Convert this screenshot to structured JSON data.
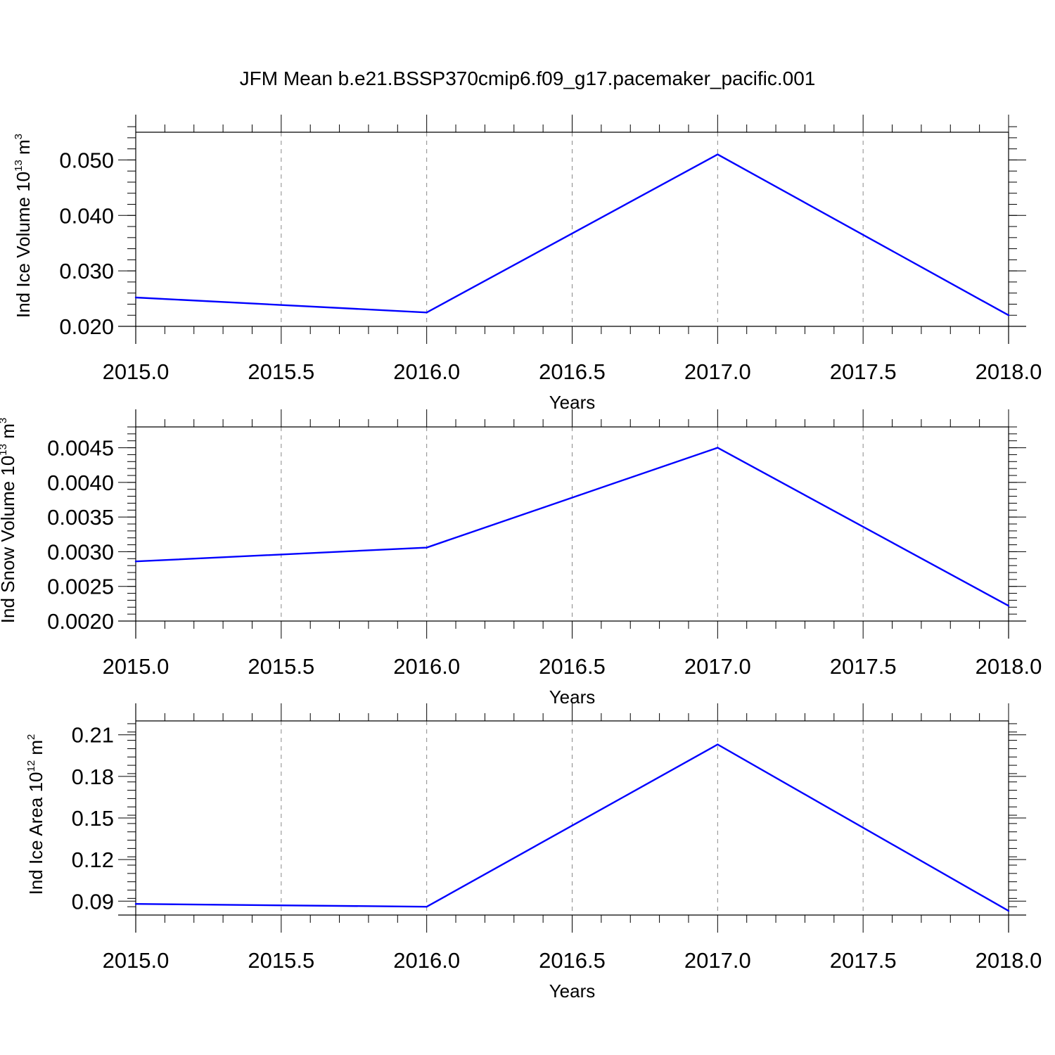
{
  "figure": {
    "title": "JFM Mean b.e21.BSSP370cmip6.f09_g17.pacemaker_pacific.001"
  },
  "colors": {
    "series_line": "#0000ff",
    "grid": "#888888",
    "frame": "#000000"
  },
  "chart_data": [
    {
      "type": "line",
      "xlabel": "Years",
      "ylabel": {
        "text": "Ind Ice Volume 10",
        "exp": "13",
        "unit": " m",
        "unit_exp": "3"
      },
      "x": [
        2015.0,
        2016.0,
        2017.0,
        2018.0
      ],
      "values": [
        0.0252,
        0.0225,
        0.051,
        0.022
      ],
      "xlim": [
        2015.0,
        2018.0
      ],
      "ylim": [
        0.02,
        0.055
      ],
      "xticks": [
        2015.0,
        2015.5,
        2016.0,
        2016.5,
        2017.0,
        2017.5,
        2018.0
      ],
      "xtick_labels": [
        "2015.0",
        "2015.5",
        "2016.0",
        "2016.5",
        "2017.0",
        "2017.5",
        "2018.0"
      ],
      "yticks": [
        0.02,
        0.03,
        0.04,
        0.05
      ],
      "ytick_labels": [
        "0.020",
        "0.030",
        "0.040",
        "0.050"
      ],
      "yminor_step": 0.002,
      "grid": "vertical-dashed"
    },
    {
      "type": "line",
      "xlabel": "Years",
      "ylabel": {
        "text": "Ind Snow Volume 10",
        "exp": "13",
        "unit": " m",
        "unit_exp": "3"
      },
      "x": [
        2015.0,
        2016.0,
        2017.0,
        2018.0
      ],
      "values": [
        0.00286,
        0.00306,
        0.0045,
        0.00222
      ],
      "xlim": [
        2015.0,
        2018.0
      ],
      "ylim": [
        0.002,
        0.0048
      ],
      "xticks": [
        2015.0,
        2015.5,
        2016.0,
        2016.5,
        2017.0,
        2017.5,
        2018.0
      ],
      "xtick_labels": [
        "2015.0",
        "2015.5",
        "2016.0",
        "2016.5",
        "2017.0",
        "2017.5",
        "2018.0"
      ],
      "yticks": [
        0.002,
        0.0025,
        0.003,
        0.0035,
        0.004,
        0.0045
      ],
      "ytick_labels": [
        "0.0020",
        "0.0025",
        "0.0030",
        "0.0035",
        "0.0040",
        "0.0045"
      ],
      "yminor_step": 0.0001,
      "grid": "vertical-dashed"
    },
    {
      "type": "line",
      "xlabel": "Years",
      "ylabel": {
        "text": "Ind Ice Area 10",
        "exp": "12",
        "unit": " m",
        "unit_exp": "2"
      },
      "x": [
        2015.0,
        2016.0,
        2017.0,
        2018.0
      ],
      "values": [
        0.088,
        0.086,
        0.203,
        0.083
      ],
      "xlim": [
        2015.0,
        2018.0
      ],
      "ylim": [
        0.08,
        0.22
      ],
      "xticks": [
        2015.0,
        2015.5,
        2016.0,
        2016.5,
        2017.0,
        2017.5,
        2018.0
      ],
      "xtick_labels": [
        "2015.0",
        "2015.5",
        "2016.0",
        "2016.5",
        "2017.0",
        "2017.5",
        "2018.0"
      ],
      "yticks": [
        0.09,
        0.12,
        0.15,
        0.18,
        0.21
      ],
      "ytick_labels": [
        "0.09",
        "0.12",
        "0.15",
        "0.18",
        "0.21"
      ],
      "yminor_step": 0.006,
      "grid": "vertical-dashed"
    }
  ]
}
